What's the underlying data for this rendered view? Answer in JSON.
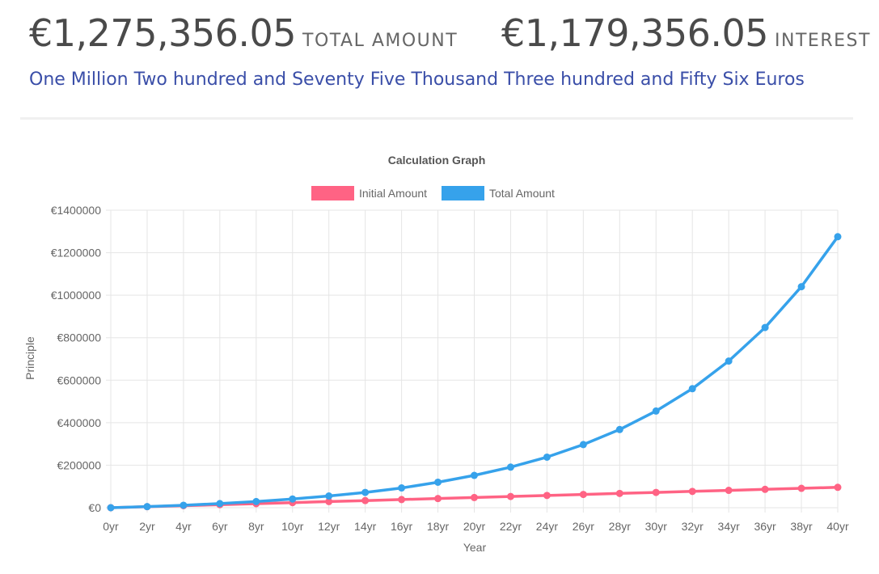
{
  "summary": {
    "total_amount": "€1,275,356.05",
    "total_label": "TOTAL AMOUNT",
    "interest_amount": "€1,179,356.05",
    "interest_label": "INTEREST",
    "amount_in_words": "One Million Two hundred and Seventy Five Thousand Three hundred and Fifty Six Euros"
  },
  "colors": {
    "initial": "#ff6384",
    "total": "#36a2eb",
    "grid": "#e5e5e5",
    "axis_text": "#666666"
  },
  "chart_data": {
    "type": "line",
    "title": "Calculation Graph",
    "xlabel": "Year",
    "ylabel": "Principle",
    "ylim": [
      0,
      1400000
    ],
    "y_ticks": [
      "€1400000",
      "€1200000",
      "€1000000",
      "€800000",
      "€600000",
      "€400000",
      "€200000",
      "€0"
    ],
    "y_tick_values": [
      1400000,
      1200000,
      1000000,
      800000,
      600000,
      400000,
      200000,
      0
    ],
    "categories": [
      "0yr",
      "2yr",
      "4yr",
      "6yr",
      "8yr",
      "10yr",
      "12yr",
      "14yr",
      "16yr",
      "18yr",
      "20yr",
      "22yr",
      "24yr",
      "26yr",
      "28yr",
      "30yr",
      "32yr",
      "34yr",
      "36yr",
      "38yr",
      "40yr"
    ],
    "legend_position": "top-center",
    "series": [
      {
        "name": "Initial Amount",
        "values": [
          0,
          4800,
          9600,
          14400,
          19200,
          24000,
          28800,
          33600,
          38400,
          43200,
          48000,
          52800,
          57600,
          62400,
          67200,
          72000,
          76800,
          81600,
          86400,
          91200,
          96000
        ]
      },
      {
        "name": "Total Amount",
        "values": [
          0,
          5200,
          11500,
          19500,
          29000,
          41000,
          55000,
          72000,
          93000,
          120000,
          152000,
          191000,
          238000,
          297000,
          368000,
          455000,
          560000,
          690000,
          848000,
          1040000,
          1275356
        ]
      }
    ]
  }
}
